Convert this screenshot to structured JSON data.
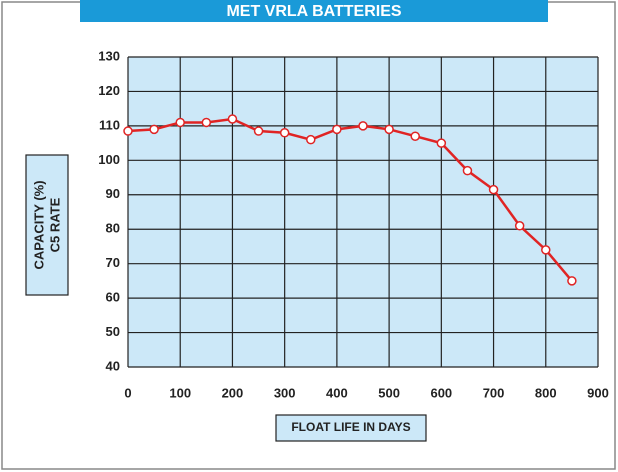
{
  "chart_data": {
    "type": "line",
    "title": "MET VRLA BATTERIES",
    "ylabel": [
      "CAPACITY (%)",
      "C5 RATE"
    ],
    "xlabel": "FLOAT LIFE IN DAYS",
    "x": [
      0,
      50,
      100,
      150,
      200,
      250,
      300,
      350,
      400,
      450,
      500,
      550,
      600,
      650,
      700,
      750,
      800,
      850
    ],
    "series": [
      {
        "name": "Capacity",
        "color": "#e02424",
        "values": [
          108.5,
          109,
          111,
          111,
          112,
          108.5,
          108,
          106,
          109,
          110,
          109,
          107,
          105,
          97,
          91.5,
          81,
          74,
          65
        ]
      }
    ],
    "xlim": [
      0,
      900
    ],
    "xticks": [
      0,
      100,
      200,
      300,
      400,
      500,
      600,
      700,
      800,
      900
    ],
    "ylim": [
      40,
      130
    ],
    "yticks": [
      40,
      50,
      60,
      70,
      80,
      90,
      100,
      110,
      120,
      130
    ],
    "grid": true
  }
}
